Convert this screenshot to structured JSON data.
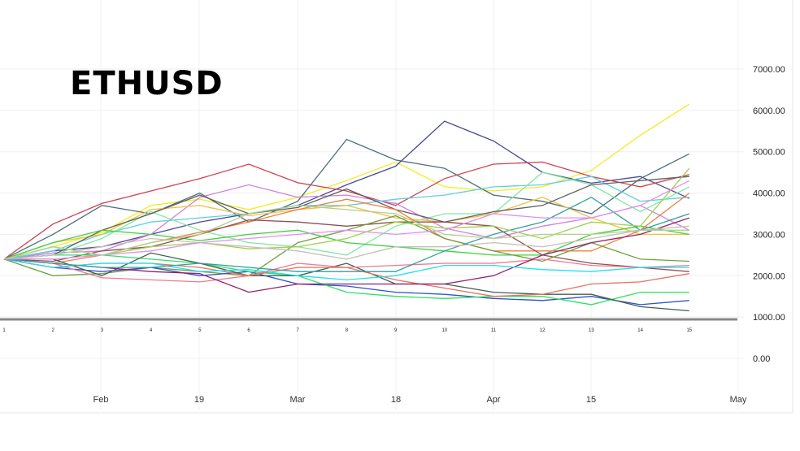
{
  "chart_data": {
    "type": "line",
    "title": "ETHUSD",
    "xlabel": "",
    "ylabel": "",
    "x": [
      1,
      2,
      3,
      4,
      5,
      6,
      7,
      8,
      9,
      10,
      11,
      12,
      13,
      14,
      15
    ],
    "date_ticks": [
      "Feb",
      "19",
      "Mar",
      "18",
      "Apr",
      "15",
      "May"
    ],
    "yticks": [
      "0.00",
      "1000.00",
      "2000.00",
      "3000.00",
      "4000.00",
      "5000.00",
      "6000.00",
      "7000.00"
    ],
    "ylim": [
      0,
      7000
    ],
    "grid": true,
    "legend": "none",
    "series": [
      {
        "color": "#eeee22",
        "values": [
          2400,
          2700,
          3050,
          3700,
          3850,
          3600,
          3900,
          4300,
          4750,
          4150,
          4050,
          4150,
          4550,
          5400,
          6150
        ]
      },
      {
        "color": "#4b4a9a",
        "values": [
          2400,
          2600,
          2700,
          3000,
          3300,
          3500,
          3700,
          4200,
          4650,
          5740,
          5260,
          4500,
          4240,
          4400,
          3870
        ]
      },
      {
        "color": "#4a6e78",
        "values": [
          2400,
          3000,
          3700,
          3500,
          4000,
          3300,
          3800,
          5300,
          4800,
          4600,
          3950,
          3800,
          3500,
          4350,
          4950
        ]
      },
      {
        "color": "#d04050",
        "values": [
          2400,
          3250,
          3750,
          4050,
          4350,
          4700,
          4250,
          4050,
          3700,
          4350,
          4700,
          4750,
          4400,
          4150,
          4450
        ]
      },
      {
        "color": "#d080e0",
        "values": [
          2400,
          2550,
          2600,
          3000,
          3900,
          4200,
          3900,
          3950,
          3750,
          3150,
          2900,
          3200,
          3400,
          3700,
          3100
        ]
      },
      {
        "color": "#60d0e0",
        "values": [
          2400,
          2600,
          3000,
          3300,
          3400,
          3500,
          3700,
          3700,
          3850,
          3950,
          4150,
          4200,
          4400,
          3800,
          3900
        ]
      },
      {
        "color": "#80e8a0",
        "values": [
          2400,
          2500,
          2900,
          3550,
          3100,
          2800,
          2700,
          2500,
          3200,
          3500,
          3500,
          4500,
          4200,
          3550,
          4150
        ]
      },
      {
        "color": "#f0c040",
        "values": [
          2400,
          2800,
          3000,
          3600,
          3700,
          3450,
          3600,
          3700,
          3400,
          3300,
          3500,
          3900,
          3400,
          3000,
          3000
        ]
      },
      {
        "color": "#606060",
        "values": [
          2400,
          2500,
          3100,
          3500,
          3950,
          3500,
          3650,
          4100,
          3600,
          3300,
          3550,
          3700,
          4200,
          4300,
          4400
        ]
      },
      {
        "color": "#40d040",
        "values": [
          2400,
          2800,
          3100,
          3000,
          2850,
          3000,
          3100,
          2800,
          2700,
          2600,
          2500,
          2500,
          3000,
          3200,
          3000
        ]
      },
      {
        "color": "#f08040",
        "values": [
          2400,
          2300,
          2500,
          2800,
          3050,
          3300,
          3600,
          3850,
          3600,
          2900,
          2600,
          2600,
          2600,
          3100,
          4000
        ]
      },
      {
        "color": "#905050",
        "values": [
          2400,
          2350,
          2600,
          2700,
          3000,
          3350,
          3300,
          3200,
          3300,
          3300,
          3200,
          2500,
          2300,
          2200,
          2100
        ]
      },
      {
        "color": "#70a040",
        "values": [
          2400,
          2000,
          2050,
          2200,
          2100,
          2000,
          2800,
          3100,
          3450,
          2900,
          2600,
          2350,
          2800,
          2400,
          2350
        ]
      },
      {
        "color": "#3050d0",
        "values": [
          2400,
          2200,
          2100,
          2200,
          2000,
          2100,
          1800,
          1750,
          1600,
          1550,
          1450,
          1400,
          1500,
          1300,
          1400
        ]
      },
      {
        "color": "#30e060",
        "values": [
          2400,
          2500,
          2500,
          2400,
          2300,
          2100,
          2000,
          1600,
          1500,
          1450,
          1500,
          1500,
          1300,
          1600,
          1600
        ]
      },
      {
        "color": "#406050",
        "values": [
          2400,
          2400,
          2000,
          2550,
          2300,
          2000,
          2000,
          2300,
          1800,
          1800,
          1600,
          1550,
          1550,
          1250,
          1150
        ]
      },
      {
        "color": "#f07890",
        "values": [
          2400,
          2300,
          1950,
          1900,
          1850,
          2000,
          2300,
          2200,
          2250,
          2300,
          2300,
          2400,
          2250,
          2200,
          2250
        ]
      },
      {
        "color": "#e87060",
        "values": [
          2400,
          2200,
          2300,
          2300,
          2200,
          2000,
          2200,
          2200,
          1900,
          1700,
          1500,
          1550,
          1800,
          1850,
          2050
        ]
      },
      {
        "color": "#902070",
        "values": [
          2400,
          2300,
          2200,
          2100,
          2050,
          1600,
          1800,
          1800,
          1800,
          1800,
          2000,
          2500,
          2800,
          3000,
          3400
        ]
      },
      {
        "color": "#20e0f0",
        "values": [
          2400,
          2200,
          2300,
          2300,
          2100,
          2150,
          2000,
          1900,
          2000,
          2250,
          2250,
          2150,
          2100,
          2200,
          2200
        ]
      },
      {
        "color": "#30a0a0",
        "values": [
          2400,
          2300,
          2200,
          2200,
          2300,
          2200,
          2100,
          2100,
          2100,
          2600,
          3000,
          3300,
          3900,
          3100,
          3500
        ]
      },
      {
        "color": "#a0d050",
        "values": [
          2400,
          2700,
          2500,
          2700,
          2800,
          2650,
          2700,
          2900,
          3300,
          3150,
          3200,
          2900,
          3300,
          3200,
          4600
        ]
      },
      {
        "color": "#c8c0b8",
        "values": [
          2400,
          2500,
          2700,
          2900,
          2800,
          2700,
          2600,
          2400,
          2700,
          2700,
          2800,
          2700,
          2900,
          3100,
          3200
        ]
      },
      {
        "color": "#e090f0",
        "values": [
          2400,
          2400,
          2500,
          2600,
          2800,
          2900,
          3000,
          3100,
          3000,
          3100,
          3500,
          3400,
          3400,
          3700,
          4300
        ]
      },
      {
        "color": "#b0d090",
        "values": [
          2400,
          2700,
          2500,
          2800,
          3000,
          3500,
          3700,
          3600,
          3500,
          3000,
          2900,
          3000,
          3000,
          3100,
          3100
        ]
      }
    ]
  }
}
